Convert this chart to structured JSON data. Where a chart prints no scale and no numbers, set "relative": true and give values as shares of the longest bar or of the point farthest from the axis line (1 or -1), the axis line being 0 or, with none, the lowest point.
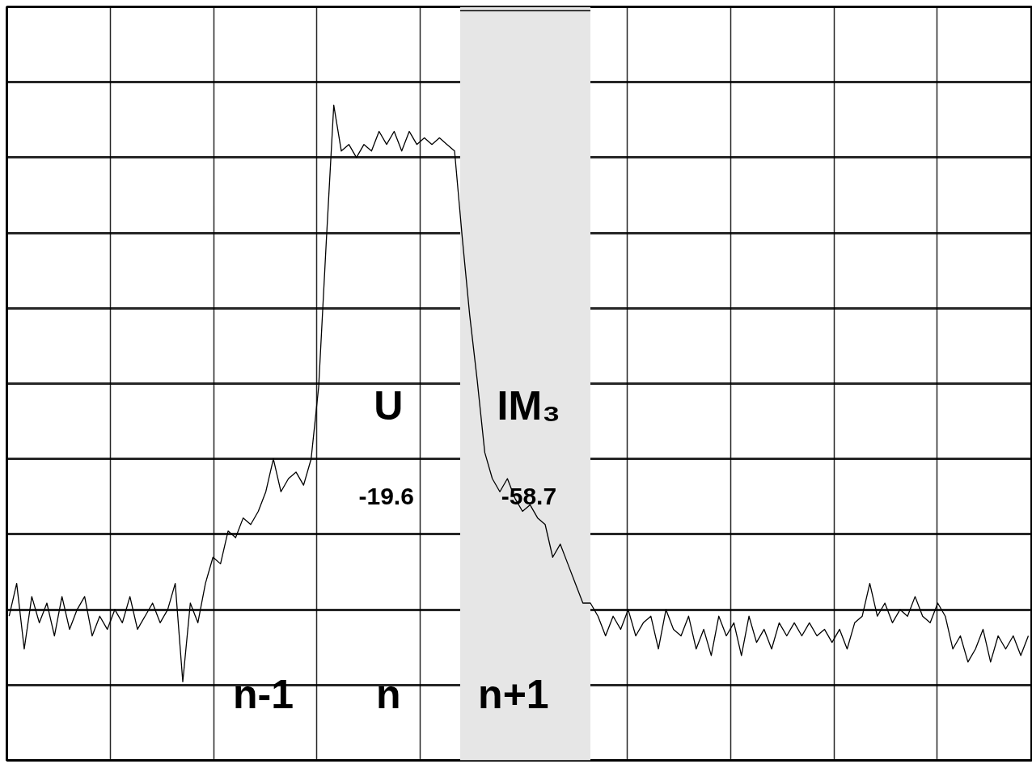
{
  "chart_data": {
    "type": "line",
    "relative": true,
    "grid": true,
    "tick_labels": false,
    "line_style": "solid",
    "marker": "none",
    "categories": [
      null,
      null,
      null,
      null,
      null,
      null,
      null,
      null,
      null,
      null,
      null,
      null,
      null,
      null,
      null,
      null,
      null,
      null,
      null,
      null,
      null,
      null,
      null,
      null,
      null,
      null,
      null,
      null,
      null,
      null,
      null,
      null,
      null,
      null,
      null,
      null,
      null,
      null,
      null,
      null,
      null,
      null,
      null,
      null,
      null,
      null,
      null,
      null,
      null,
      null,
      null,
      null,
      null,
      null,
      null,
      null,
      null,
      null,
      null,
      null,
      null,
      null,
      null,
      null,
      null,
      null,
      null,
      null,
      null,
      null,
      null,
      null,
      null,
      null,
      null,
      null,
      null,
      null,
      null,
      null,
      null,
      null,
      null,
      null,
      null,
      null,
      null,
      null,
      null,
      null,
      null,
      null,
      null,
      null,
      null,
      null,
      null,
      null,
      null,
      null,
      null,
      null,
      null,
      null,
      null,
      null,
      null,
      null,
      null,
      null,
      null,
      null,
      null,
      null,
      null,
      null,
      null,
      null,
      null,
      null,
      null,
      null,
      null,
      null,
      null,
      null,
      null,
      null,
      null,
      null,
      null,
      null,
      null,
      null,
      null,
      null
    ],
    "series": [
      {
        "color": "#000000",
        "values": [
          0.22,
          0.27,
          0.17,
          0.25,
          0.21,
          0.24,
          0.19,
          0.25,
          0.2,
          0.23,
          0.25,
          0.19,
          0.22,
          0.2,
          0.23,
          0.21,
          0.25,
          0.2,
          0.22,
          0.24,
          0.21,
          0.23,
          0.27,
          0.12,
          0.24,
          0.21,
          0.27,
          0.31,
          0.3,
          0.35,
          0.34,
          0.37,
          0.36,
          0.38,
          0.41,
          0.46,
          0.41,
          0.43,
          0.44,
          0.42,
          0.46,
          0.57,
          0.79,
          1,
          0.93,
          0.94,
          0.92,
          0.94,
          0.93,
          0.96,
          0.94,
          0.96,
          0.93,
          0.96,
          0.94,
          0.95,
          0.94,
          0.95,
          0.94,
          0.93,
          0.8,
          0.68,
          0.58,
          0.47,
          0.43,
          0.41,
          0.43,
          0.4,
          0.38,
          0.39,
          0.37,
          0.36,
          0.31,
          0.33,
          0.3,
          0.27,
          0.24,
          0.24,
          0.22,
          0.19,
          0.22,
          0.2,
          0.23,
          0.19,
          0.21,
          0.22,
          0.17,
          0.23,
          0.2,
          0.19,
          0.22,
          0.17,
          0.2,
          0.16,
          0.22,
          0.19,
          0.21,
          0.16,
          0.22,
          0.18,
          0.2,
          0.17,
          0.21,
          0.19,
          0.21,
          0.19,
          0.21,
          0.19,
          0.2,
          0.18,
          0.2,
          0.17,
          0.21,
          0.22,
          0.27,
          0.22,
          0.24,
          0.21,
          0.23,
          0.22,
          0.25,
          0.22,
          0.21,
          0.24,
          0.22,
          0.17,
          0.19,
          0.15,
          0.17,
          0.2,
          0.15,
          0.19,
          0.17,
          0.19,
          0.16,
          0.19
        ]
      }
    ],
    "annotations": [
      "U",
      "IM₃",
      "-19.6",
      "-58.7",
      "n-1",
      "n",
      "n+1"
    ]
  }
}
